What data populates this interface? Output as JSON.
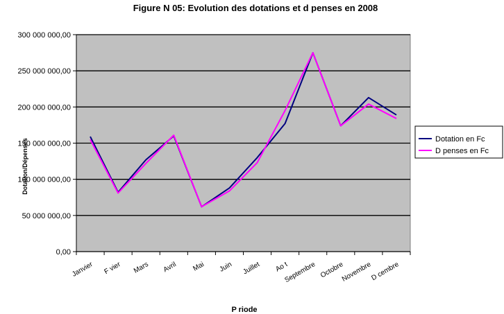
{
  "chart_data": {
    "type": "line",
    "title": "Figure N  05: Evolution des dotations et d  penses en 2008",
    "xlabel": "P  riode",
    "ylabel": "Dotation/Dépenses",
    "ylim": [
      0,
      300000000
    ],
    "y_ticks": [
      "0,00",
      "50 000 000,00",
      "100 000 000,00",
      "150 000 000,00",
      "200 000 000,00",
      "250 000 000,00",
      "300 000 000,00"
    ],
    "categories": [
      "Janvier",
      "F vier",
      "Mars",
      "Avril",
      "Mai",
      "Juin",
      "Juillet",
      "Ao t",
      "Septembre",
      "Octobre",
      "Novembre",
      "D cembre"
    ],
    "grid": true,
    "legend_position": "right",
    "series": [
      {
        "name": "Dotation en Fc",
        "color": "#000080",
        "values": [
          159000000,
          82000000,
          127000000,
          160000000,
          62000000,
          88000000,
          130000000,
          177000000,
          275000000,
          174000000,
          213000000,
          189000000
        ]
      },
      {
        "name": "D  penses en Fc",
        "color": "#ff00ff",
        "values": [
          155000000,
          81000000,
          122000000,
          161000000,
          62000000,
          84000000,
          123000000,
          195000000,
          275000000,
          174000000,
          204000000,
          184000000
        ]
      }
    ],
    "colors": {
      "plot_background": "#c0c0c0",
      "gridline": "#000000"
    }
  }
}
